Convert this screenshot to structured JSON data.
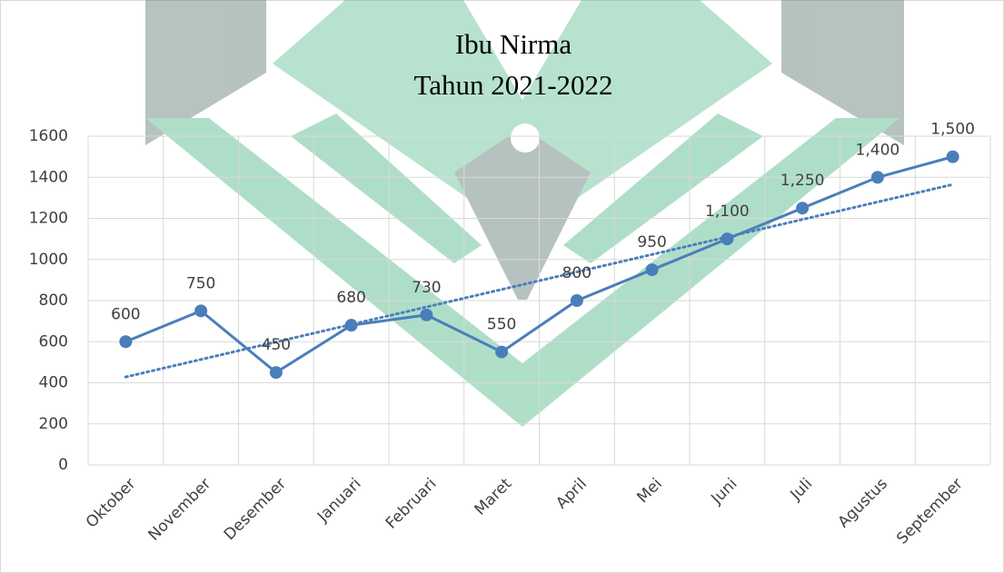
{
  "chart_data": {
    "type": "line",
    "title": "Ibu Nirma",
    "subtitle": "Tahun 2021-2022",
    "categories": [
      "Oktober",
      "November",
      "Desember",
      "Januari",
      "Februari",
      "Maret",
      "April",
      "Mei",
      "Juni",
      "Juli",
      "Agustus",
      "September"
    ],
    "series": [
      {
        "color": "#4a7ebb",
        "values": [
          600,
          750,
          450,
          680,
          730,
          550,
          800,
          950,
          1100,
          1250,
          1400,
          1500
        ],
        "value_labels": [
          "600",
          "750",
          "450",
          "680",
          "730",
          "550",
          "800",
          "950",
          "1,100",
          "1,250",
          "1,400",
          "1,500"
        ]
      }
    ],
    "trendline": "linear",
    "ylim": [
      0,
      1600
    ],
    "yticks": [
      0,
      200,
      400,
      600,
      800,
      1000,
      1200,
      1400,
      1600
    ],
    "grid": true
  }
}
